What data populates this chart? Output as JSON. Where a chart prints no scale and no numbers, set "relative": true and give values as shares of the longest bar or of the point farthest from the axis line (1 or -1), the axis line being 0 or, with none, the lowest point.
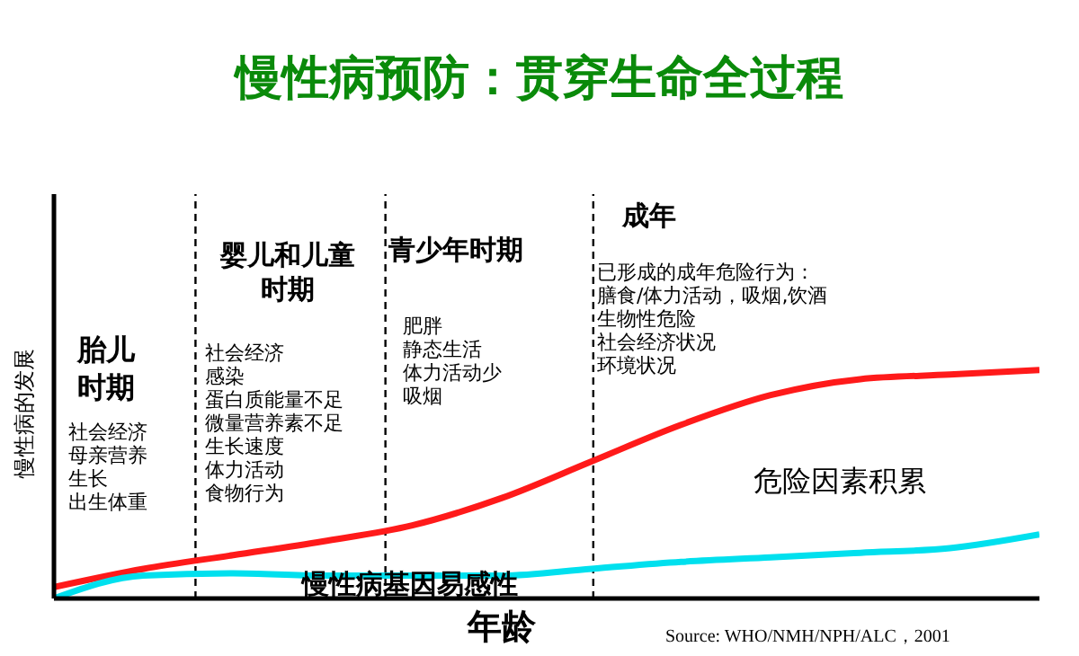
{
  "chart_data": {
    "type": "line",
    "title": "慢性病预防：贯穿生命全过程",
    "xlabel": "年龄",
    "ylabel": "慢性病的发展",
    "relative": true,
    "categories": [
      null,
      null,
      null,
      null,
      null,
      null,
      null,
      null,
      null,
      null,
      null,
      null
    ],
    "series": [
      {
        "color": "#ff1a1a",
        "values": [
          0.05,
          0.13,
          0.19,
          0.25,
          0.32,
          0.44,
          0.6,
          0.76,
          0.89,
          0.96,
          0.98,
          1
        ]
      },
      {
        "name": "慢性病基因易感性",
        "color": "#00e0ee",
        "values": [
          0,
          0.1,
          0.11,
          0.1,
          0.1,
          0.1,
          0.13,
          0.16,
          0.18,
          0.2,
          0.22,
          0.28
        ]
      }
    ],
    "annotations": [
      "胎儿",
      "时期",
      "社会经济",
      "母亲营养",
      "生长",
      "出生体重",
      "婴儿和儿童",
      "时期",
      "社会经济",
      "感染",
      "蛋白质能量不足",
      "微量营养素不足",
      "生长速度",
      "体力活动",
      "食物行为",
      "青少年时期",
      "肥胖",
      "静态生活",
      "体力活动少",
      "吸烟",
      "成年",
      "已形成的成年危险行为：",
      "膳食/体力活动，吸烟,饮酒",
      "生物性危险",
      "社会经济状况",
      "环境状况",
      "危险因素积累",
      "Source: WHO/NMH/NPH/ALC，2001"
    ]
  }
}
